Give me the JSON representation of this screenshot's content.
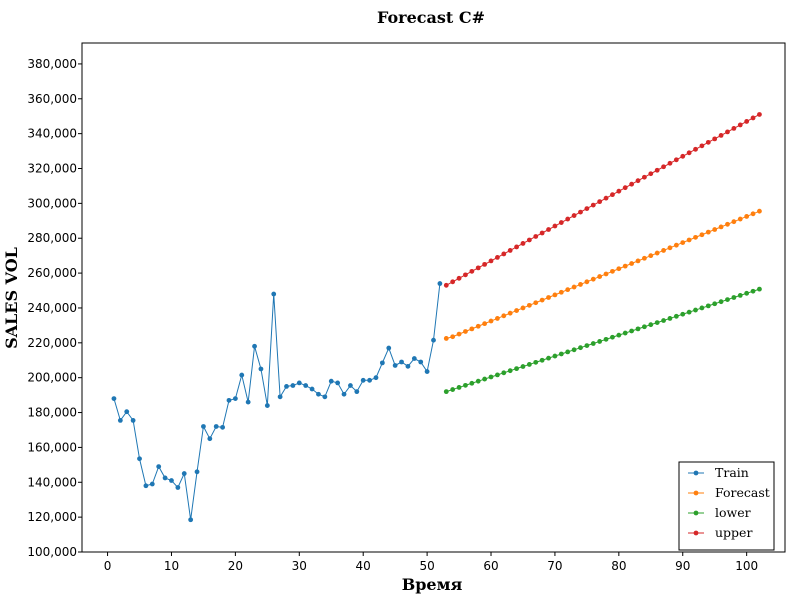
{
  "chart_data": {
    "type": "line",
    "title": "Forecast C#",
    "xlabel": "Время",
    "ylabel": "SALES VOL",
    "xlim": [
      -4,
      106
    ],
    "ylim": [
      100000,
      392000
    ],
    "x_ticks": [
      0,
      10,
      20,
      30,
      40,
      50,
      60,
      70,
      80,
      90,
      100
    ],
    "x_tick_labels": [
      "0",
      "10",
      "20",
      "30",
      "40",
      "50",
      "60",
      "70",
      "80",
      "90",
      "100"
    ],
    "y_ticks": [
      100000,
      120000,
      140000,
      160000,
      180000,
      200000,
      220000,
      240000,
      260000,
      280000,
      300000,
      320000,
      340000,
      360000,
      380000
    ],
    "y_tick_labels": [
      "100,000",
      "120,000",
      "140,000",
      "160,000",
      "180,000",
      "200,000",
      "220,000",
      "240,000",
      "260,000",
      "280,000",
      "300,000",
      "320,000",
      "340,000",
      "360,000",
      "380,000"
    ],
    "grid": false,
    "legend_position": "bottom-right",
    "series": [
      {
        "name": "Train",
        "color": "#1f77b4",
        "x": [
          1,
          2,
          3,
          4,
          5,
          6,
          7,
          8,
          9,
          10,
          11,
          12,
          13,
          14,
          15,
          16,
          17,
          18,
          19,
          20,
          21,
          22,
          23,
          24,
          25,
          26,
          27,
          28,
          29,
          30,
          31,
          32,
          33,
          34,
          35,
          36,
          37,
          38,
          39,
          40,
          41,
          42,
          43,
          44,
          45,
          46,
          47,
          48,
          49,
          50,
          51,
          52
        ],
        "values": [
          188000,
          175500,
          180500,
          175500,
          153500,
          138000,
          139000,
          149000,
          142500,
          141000,
          137000,
          145000,
          118500,
          146000,
          172000,
          165000,
          172000,
          171500,
          187000,
          188000,
          201500,
          186000,
          218000,
          205000,
          184000,
          248000,
          189000,
          195000,
          195500,
          197000,
          195500,
          193500,
          190500,
          189000,
          198000,
          197000,
          190500,
          195500,
          192000,
          198500,
          198500,
          200000,
          208500,
          217000,
          207000,
          209000,
          206500,
          211000,
          209000,
          203500,
          221500,
          254000
        ]
      },
      {
        "name": "Forecast",
        "color": "#ff7f0e",
        "x": [
          53,
          54,
          55,
          56,
          57,
          58,
          59,
          60,
          61,
          62,
          63,
          64,
          65,
          66,
          67,
          68,
          69,
          70,
          71,
          72,
          73,
          74,
          75,
          76,
          77,
          78,
          79,
          80,
          81,
          82,
          83,
          84,
          85,
          86,
          87,
          88,
          89,
          90,
          91,
          92,
          93,
          94,
          95,
          96,
          97,
          98,
          99,
          100,
          101,
          102
        ],
        "values": [
          222500,
          223500,
          225000,
          226500,
          228000,
          229500,
          231000,
          232500,
          234000,
          235500,
          237000,
          238500,
          240000,
          241500,
          243000,
          244500,
          246000,
          247500,
          249000,
          250500,
          252000,
          253500,
          255000,
          256500,
          258000,
          259500,
          261000,
          262500,
          264000,
          265500,
          267000,
          268500,
          270000,
          271500,
          273000,
          274500,
          276000,
          277500,
          279000,
          280500,
          282000,
          283500,
          285000,
          286500,
          288000,
          289500,
          291000,
          292500,
          294000,
          295500
        ]
      },
      {
        "name": "lower",
        "color": "#2ca02c",
        "x": [
          53,
          54,
          55,
          56,
          57,
          58,
          59,
          60,
          61,
          62,
          63,
          64,
          65,
          66,
          67,
          68,
          69,
          70,
          71,
          72,
          73,
          74,
          75,
          76,
          77,
          78,
          79,
          80,
          81,
          82,
          83,
          84,
          85,
          86,
          87,
          88,
          89,
          90,
          91,
          92,
          93,
          94,
          95,
          96,
          97,
          98,
          99,
          100,
          101,
          102
        ],
        "values": [
          192000,
          193200,
          194400,
          195600,
          196800,
          198000,
          199200,
          200400,
          201600,
          202800,
          204000,
          205200,
          206400,
          207600,
          208800,
          210000,
          211200,
          212400,
          213600,
          214800,
          216000,
          217200,
          218400,
          219600,
          220800,
          222000,
          223200,
          224400,
          225600,
          226800,
          228000,
          229200,
          230400,
          231600,
          232800,
          234000,
          235200,
          236400,
          237600,
          238800,
          240000,
          241200,
          242400,
          243600,
          244800,
          246000,
          247200,
          248400,
          249600,
          250800
        ]
      },
      {
        "name": "upper",
        "color": "#d62728",
        "x": [
          53,
          54,
          55,
          56,
          57,
          58,
          59,
          60,
          61,
          62,
          63,
          64,
          65,
          66,
          67,
          68,
          69,
          70,
          71,
          72,
          73,
          74,
          75,
          76,
          77,
          78,
          79,
          80,
          81,
          82,
          83,
          84,
          85,
          86,
          87,
          88,
          89,
          90,
          91,
          92,
          93,
          94,
          95,
          96,
          97,
          98,
          99,
          100,
          101,
          102
        ],
        "values": [
          253000,
          255000,
          257000,
          259000,
          261000,
          263000,
          265000,
          267000,
          269000,
          271000,
          273000,
          275000,
          277000,
          279000,
          281000,
          283000,
          285000,
          287000,
          289000,
          291000,
          293000,
          295000,
          297000,
          299000,
          301000,
          303000,
          305000,
          307000,
          309000,
          311000,
          313000,
          315000,
          317000,
          319000,
          321000,
          323000,
          325000,
          327000,
          329000,
          331000,
          333000,
          335000,
          337000,
          339000,
          341000,
          343000,
          345000,
          347000,
          349000,
          351000
        ]
      }
    ]
  }
}
